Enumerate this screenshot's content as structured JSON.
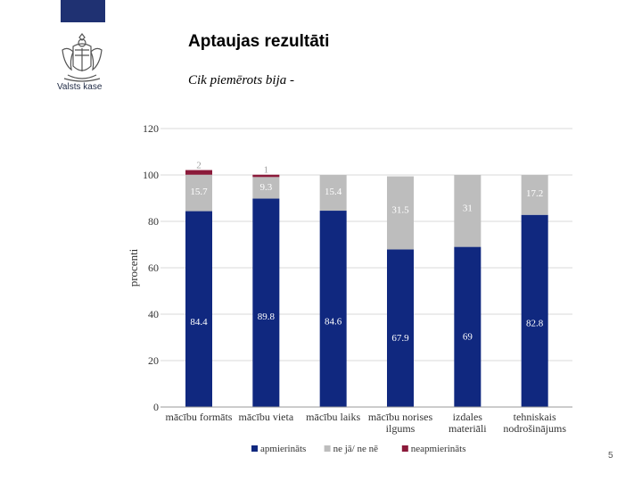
{
  "header": {
    "brand_name": "Valsts kase",
    "title": "Aptaujas rezultāti",
    "subtitle": "Cik piemērots bija -"
  },
  "colors": {
    "top_bar": "#1f3172",
    "apmierinats": "#10287f",
    "ne_ja_ne_ne": "#bdbdbd",
    "neapmierinats": "#8b1a3a",
    "grid": "#d9d9d9"
  },
  "icons": {
    "logo": "coat-of-arms-icon"
  },
  "chart_data": {
    "type": "bar",
    "stacked": true,
    "categories": [
      [
        "mācību formāts"
      ],
      [
        "mācību vieta"
      ],
      [
        "mācību laiks"
      ],
      [
        "mācību norises",
        "ilgums"
      ],
      [
        "izdales",
        "materiāli"
      ],
      [
        "tehniskais",
        "nodrošinājums"
      ]
    ],
    "series": [
      {
        "name": "apmierināts",
        "values": [
          84.4,
          89.8,
          84.6,
          67.9,
          69,
          82.8
        ],
        "labels": [
          "84.4",
          "89.8",
          "84.6",
          "67.9",
          "69",
          "82.8"
        ],
        "color": "#10287f",
        "label_color": "#ffffff"
      },
      {
        "name": "ne jā/ ne nē",
        "values": [
          15.7,
          9.3,
          15.4,
          31.5,
          31,
          17.2
        ],
        "labels": [
          "15.7",
          "9.3",
          "15.4",
          "31.5",
          "31",
          "17.2"
        ],
        "color": "#bdbdbd",
        "label_color": "#ffffff"
      },
      {
        "name": "neapmierināts",
        "values": [
          2,
          1,
          0,
          0,
          0,
          0
        ],
        "labels": [
          "2",
          "1",
          "",
          "",
          "",
          ""
        ],
        "color": "#8b1a3a",
        "label_color": "#a0a0a0"
      }
    ],
    "ylabel": "procenti",
    "ylim": [
      0,
      120
    ],
    "yticks": [
      0,
      20,
      40,
      60,
      80,
      100,
      120
    ],
    "grid": true,
    "legend_position": "bottom"
  },
  "footer": {
    "page_number": "5"
  }
}
